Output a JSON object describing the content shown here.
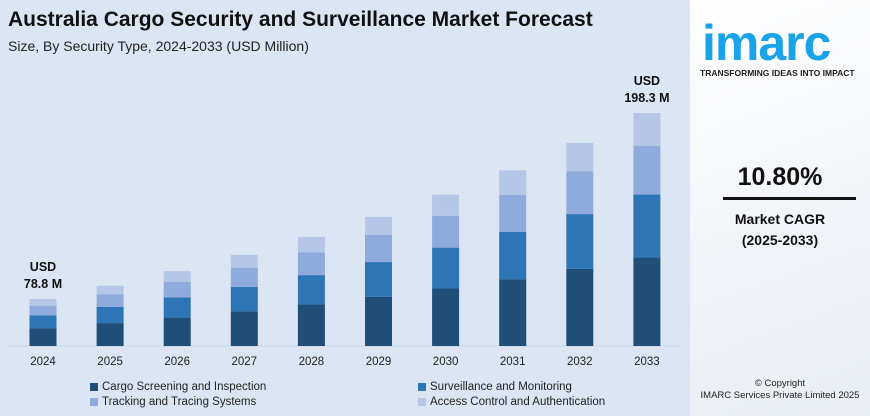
{
  "header": {
    "title": "Australia Cargo Security and Surveillance Market Forecast",
    "subtitle": "Size, By Security Type, 2024-2033 (USD Million)"
  },
  "chart_data": {
    "type": "bar",
    "stacked": true,
    "title": "Australia Cargo Security and Surveillance Market Forecast",
    "subtitle": "Size, By Security Type, 2024-2033 (USD Million)",
    "categories": [
      "2024",
      "2025",
      "2026",
      "2027",
      "2028",
      "2029",
      "2030",
      "2031",
      "2032",
      "2033"
    ],
    "series": [
      {
        "name": "Cargo Screening and Inspection",
        "color": "#1f4e79",
        "values": [
          29.9,
          33.2,
          36.7,
          40.7,
          45.1,
          50.0,
          55.4,
          61.4,
          68.0,
          75.4
        ]
      },
      {
        "name": "Surveillance and Monitoring",
        "color": "#2e75b6",
        "values": [
          21.3,
          23.6,
          26.1,
          28.9,
          32.0,
          35.5,
          39.4,
          43.6,
          48.3,
          53.5
        ]
      },
      {
        "name": "Tracking and Tracing Systems",
        "color": "#8faadc",
        "values": [
          16.5,
          18.3,
          20.3,
          22.5,
          24.9,
          27.6,
          30.6,
          33.9,
          37.6,
          41.6
        ]
      },
      {
        "name": "Access Control and Authentication",
        "color": "#b4c7e7",
        "values": [
          11.1,
          12.2,
          13.6,
          15.1,
          16.7,
          18.5,
          20.4,
          22.6,
          25.1,
          27.8
        ]
      }
    ],
    "annotations": [
      {
        "category": "2024",
        "line1": "USD",
        "line2": "78.8 M"
      },
      {
        "category": "2033",
        "line1": "USD",
        "line2": "198.3 M"
      }
    ],
    "grid": false,
    "legend_position": "bottom"
  },
  "sidebar": {
    "logo": "imarc",
    "tagline": "TRANSFORMING IDEAS INTO IMPACT",
    "cagr_value": "10.80%",
    "cagr_label": "Market CAGR",
    "cagr_period": "(2025-2033)",
    "copyright": "© Copyright",
    "company": "IMARC Services Private Limited 2025"
  }
}
